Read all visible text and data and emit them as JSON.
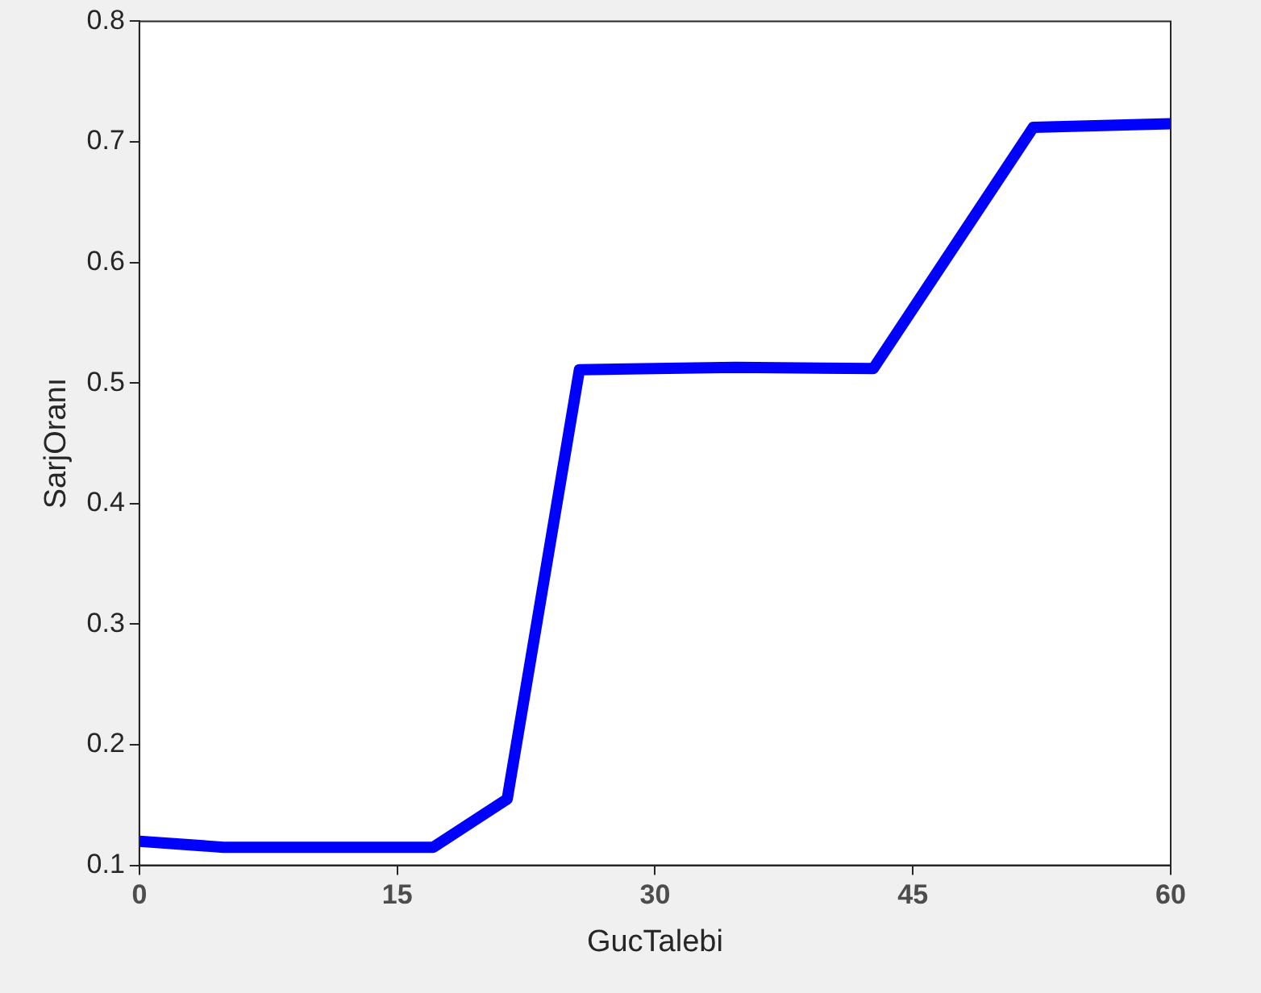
{
  "chart_data": {
    "type": "line",
    "xlabel": "GucTalebi",
    "ylabel": "SarjOranı",
    "x": [
      0,
      4.9,
      17.1,
      21.4,
      25.6,
      34.7,
      42.7,
      52.0,
      60
    ],
    "series": [
      {
        "color": "#0000ff",
        "values": [
          0.12,
          0.115,
          0.115,
          0.155,
          0.511,
          0.513,
          0.512,
          0.712,
          0.715
        ]
      }
    ],
    "xlim": [
      0,
      60
    ],
    "xticks": [
      0,
      15,
      30,
      45,
      60
    ],
    "ylim": [
      0.1,
      0.8
    ],
    "yticks": [
      0.1,
      0.2,
      0.3,
      0.4,
      0.5,
      0.6,
      0.7,
      0.8
    ],
    "grid": false,
    "legend": false,
    "marker": "none",
    "line_style": "solid"
  }
}
